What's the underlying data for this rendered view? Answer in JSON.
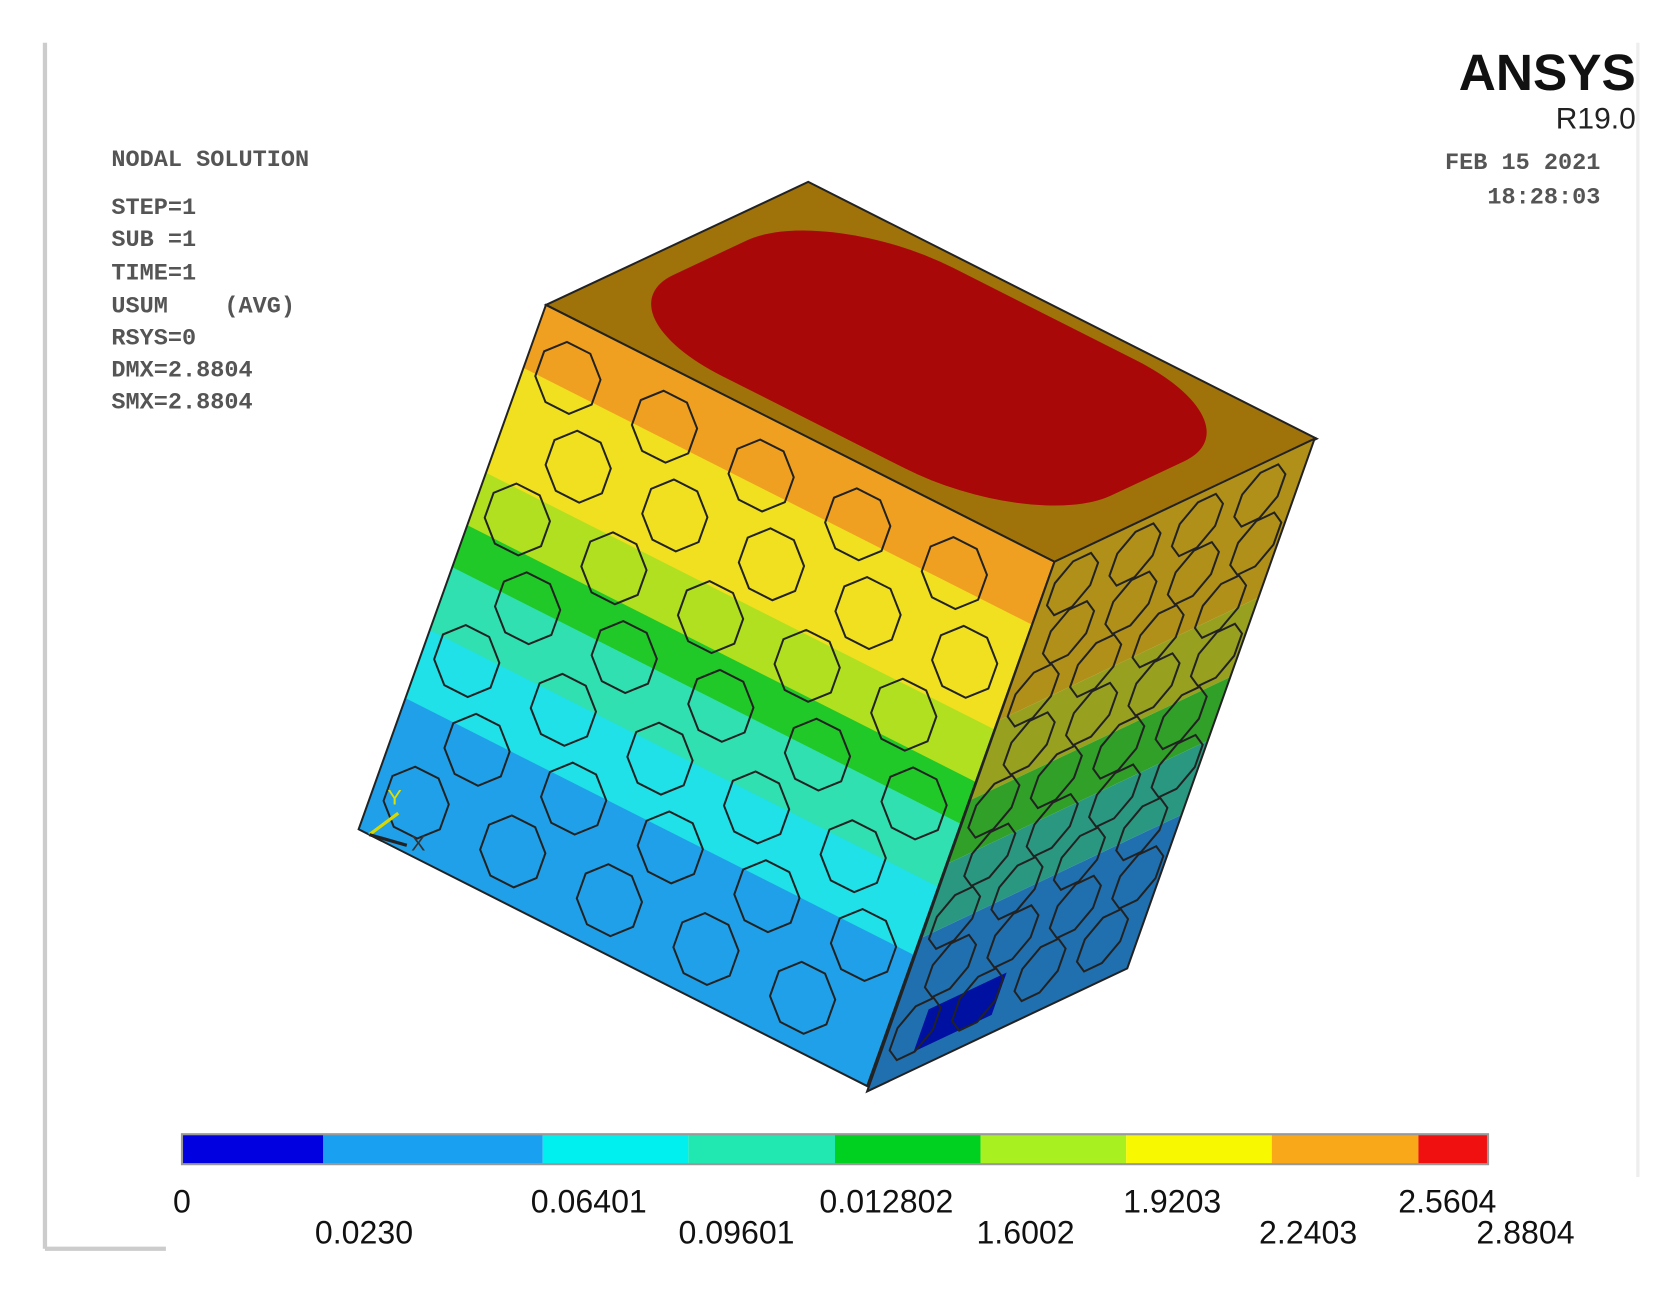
{
  "header": {
    "logo": "ANSYS",
    "version": "R19.0",
    "date": "FEB 15 2021",
    "time": "18:28:03"
  },
  "info": [
    "NODAL SOLUTION",
    "STEP=1",
    "SUB =1",
    "TIME=1",
    "USUM    (AVG)",
    "RSYS=0",
    "DMX=2.8804",
    "SMX=2.8804"
  ],
  "triad": {
    "y": "Y",
    "x": "X"
  },
  "legend": {
    "colors": [
      "#0000e0",
      "#1aa0f0",
      "#00f0f0",
      "#20e8b0",
      "#00d020",
      "#a8f020",
      "#f8f800",
      "#f8a818",
      "#f01010"
    ],
    "labels": [
      "0",
      "0.0230",
      "0.06401",
      "0.09601",
      "0.012802",
      "1.6002",
      "1.9203",
      "2.2403",
      "2.5604",
      "2.8804"
    ]
  }
}
